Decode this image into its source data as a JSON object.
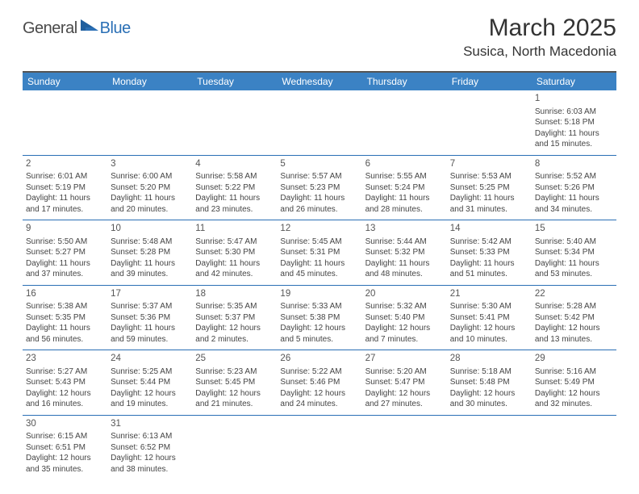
{
  "logo": {
    "text1": "General",
    "text2": "Blue"
  },
  "title": "March 2025",
  "location": "Susica, North Macedonia",
  "colors": {
    "header_bg": "#3b82c4",
    "header_text": "#ffffff",
    "border": "#2a6fb5",
    "top_border": "#555555",
    "logo_blue": "#2a6fb5",
    "logo_gray": "#4a4a4a",
    "text": "#444444",
    "bg": "#ffffff"
  },
  "dow": [
    "Sunday",
    "Monday",
    "Tuesday",
    "Wednesday",
    "Thursday",
    "Friday",
    "Saturday"
  ],
  "weeks": [
    [
      null,
      null,
      null,
      null,
      null,
      null,
      {
        "n": "1",
        "sr": "Sunrise: 6:03 AM",
        "ss": "Sunset: 5:18 PM",
        "d1": "Daylight: 11 hours",
        "d2": "and 15 minutes."
      }
    ],
    [
      {
        "n": "2",
        "sr": "Sunrise: 6:01 AM",
        "ss": "Sunset: 5:19 PM",
        "d1": "Daylight: 11 hours",
        "d2": "and 17 minutes."
      },
      {
        "n": "3",
        "sr": "Sunrise: 6:00 AM",
        "ss": "Sunset: 5:20 PM",
        "d1": "Daylight: 11 hours",
        "d2": "and 20 minutes."
      },
      {
        "n": "4",
        "sr": "Sunrise: 5:58 AM",
        "ss": "Sunset: 5:22 PM",
        "d1": "Daylight: 11 hours",
        "d2": "and 23 minutes."
      },
      {
        "n": "5",
        "sr": "Sunrise: 5:57 AM",
        "ss": "Sunset: 5:23 PM",
        "d1": "Daylight: 11 hours",
        "d2": "and 26 minutes."
      },
      {
        "n": "6",
        "sr": "Sunrise: 5:55 AM",
        "ss": "Sunset: 5:24 PM",
        "d1": "Daylight: 11 hours",
        "d2": "and 28 minutes."
      },
      {
        "n": "7",
        "sr": "Sunrise: 5:53 AM",
        "ss": "Sunset: 5:25 PM",
        "d1": "Daylight: 11 hours",
        "d2": "and 31 minutes."
      },
      {
        "n": "8",
        "sr": "Sunrise: 5:52 AM",
        "ss": "Sunset: 5:26 PM",
        "d1": "Daylight: 11 hours",
        "d2": "and 34 minutes."
      }
    ],
    [
      {
        "n": "9",
        "sr": "Sunrise: 5:50 AM",
        "ss": "Sunset: 5:27 PM",
        "d1": "Daylight: 11 hours",
        "d2": "and 37 minutes."
      },
      {
        "n": "10",
        "sr": "Sunrise: 5:48 AM",
        "ss": "Sunset: 5:28 PM",
        "d1": "Daylight: 11 hours",
        "d2": "and 39 minutes."
      },
      {
        "n": "11",
        "sr": "Sunrise: 5:47 AM",
        "ss": "Sunset: 5:30 PM",
        "d1": "Daylight: 11 hours",
        "d2": "and 42 minutes."
      },
      {
        "n": "12",
        "sr": "Sunrise: 5:45 AM",
        "ss": "Sunset: 5:31 PM",
        "d1": "Daylight: 11 hours",
        "d2": "and 45 minutes."
      },
      {
        "n": "13",
        "sr": "Sunrise: 5:44 AM",
        "ss": "Sunset: 5:32 PM",
        "d1": "Daylight: 11 hours",
        "d2": "and 48 minutes."
      },
      {
        "n": "14",
        "sr": "Sunrise: 5:42 AM",
        "ss": "Sunset: 5:33 PM",
        "d1": "Daylight: 11 hours",
        "d2": "and 51 minutes."
      },
      {
        "n": "15",
        "sr": "Sunrise: 5:40 AM",
        "ss": "Sunset: 5:34 PM",
        "d1": "Daylight: 11 hours",
        "d2": "and 53 minutes."
      }
    ],
    [
      {
        "n": "16",
        "sr": "Sunrise: 5:38 AM",
        "ss": "Sunset: 5:35 PM",
        "d1": "Daylight: 11 hours",
        "d2": "and 56 minutes."
      },
      {
        "n": "17",
        "sr": "Sunrise: 5:37 AM",
        "ss": "Sunset: 5:36 PM",
        "d1": "Daylight: 11 hours",
        "d2": "and 59 minutes."
      },
      {
        "n": "18",
        "sr": "Sunrise: 5:35 AM",
        "ss": "Sunset: 5:37 PM",
        "d1": "Daylight: 12 hours",
        "d2": "and 2 minutes."
      },
      {
        "n": "19",
        "sr": "Sunrise: 5:33 AM",
        "ss": "Sunset: 5:38 PM",
        "d1": "Daylight: 12 hours",
        "d2": "and 5 minutes."
      },
      {
        "n": "20",
        "sr": "Sunrise: 5:32 AM",
        "ss": "Sunset: 5:40 PM",
        "d1": "Daylight: 12 hours",
        "d2": "and 7 minutes."
      },
      {
        "n": "21",
        "sr": "Sunrise: 5:30 AM",
        "ss": "Sunset: 5:41 PM",
        "d1": "Daylight: 12 hours",
        "d2": "and 10 minutes."
      },
      {
        "n": "22",
        "sr": "Sunrise: 5:28 AM",
        "ss": "Sunset: 5:42 PM",
        "d1": "Daylight: 12 hours",
        "d2": "and 13 minutes."
      }
    ],
    [
      {
        "n": "23",
        "sr": "Sunrise: 5:27 AM",
        "ss": "Sunset: 5:43 PM",
        "d1": "Daylight: 12 hours",
        "d2": "and 16 minutes."
      },
      {
        "n": "24",
        "sr": "Sunrise: 5:25 AM",
        "ss": "Sunset: 5:44 PM",
        "d1": "Daylight: 12 hours",
        "d2": "and 19 minutes."
      },
      {
        "n": "25",
        "sr": "Sunrise: 5:23 AM",
        "ss": "Sunset: 5:45 PM",
        "d1": "Daylight: 12 hours",
        "d2": "and 21 minutes."
      },
      {
        "n": "26",
        "sr": "Sunrise: 5:22 AM",
        "ss": "Sunset: 5:46 PM",
        "d1": "Daylight: 12 hours",
        "d2": "and 24 minutes."
      },
      {
        "n": "27",
        "sr": "Sunrise: 5:20 AM",
        "ss": "Sunset: 5:47 PM",
        "d1": "Daylight: 12 hours",
        "d2": "and 27 minutes."
      },
      {
        "n": "28",
        "sr": "Sunrise: 5:18 AM",
        "ss": "Sunset: 5:48 PM",
        "d1": "Daylight: 12 hours",
        "d2": "and 30 minutes."
      },
      {
        "n": "29",
        "sr": "Sunrise: 5:16 AM",
        "ss": "Sunset: 5:49 PM",
        "d1": "Daylight: 12 hours",
        "d2": "and 32 minutes."
      }
    ],
    [
      {
        "n": "30",
        "sr": "Sunrise: 6:15 AM",
        "ss": "Sunset: 6:51 PM",
        "d1": "Daylight: 12 hours",
        "d2": "and 35 minutes."
      },
      {
        "n": "31",
        "sr": "Sunrise: 6:13 AM",
        "ss": "Sunset: 6:52 PM",
        "d1": "Daylight: 12 hours",
        "d2": "and 38 minutes."
      },
      null,
      null,
      null,
      null,
      null
    ]
  ]
}
